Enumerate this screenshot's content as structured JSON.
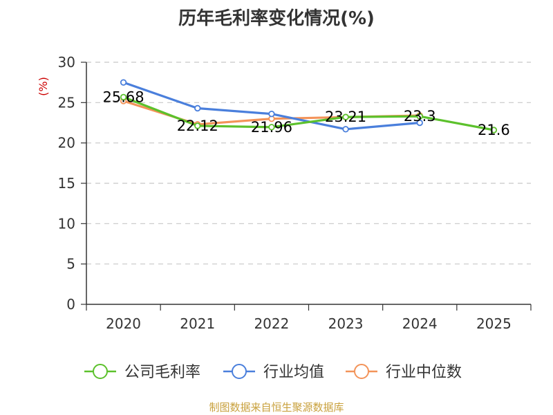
{
  "chart_data": {
    "type": "line",
    "title": "历年毛利率变化情况(%)",
    "ylabel": "(%)",
    "xlabel": "",
    "categories": [
      "2020",
      "2021",
      "2022",
      "2023",
      "2024",
      "2025"
    ],
    "ylim": [
      0,
      30
    ],
    "yticks": [
      0,
      5,
      10,
      15,
      20,
      25,
      30
    ],
    "grid": true,
    "legend_position": "bottom",
    "series": [
      {
        "name": "公司毛利率",
        "color": "#5cc12c",
        "values": [
          25.68,
          22.12,
          21.96,
          23.21,
          23.3,
          21.6
        ]
      },
      {
        "name": "行业均值",
        "color": "#4a7fdc",
        "values": [
          27.5,
          24.3,
          23.6,
          21.7,
          22.5,
          null
        ]
      },
      {
        "name": "行业中位数",
        "color": "#f39359",
        "values": [
          25.2,
          22.3,
          23.0,
          23.2,
          23.4,
          null
        ]
      }
    ],
    "data_labels": [
      {
        "series": 0,
        "index": 0,
        "text": "25.68"
      },
      {
        "series": 0,
        "index": 1,
        "text": "22.12"
      },
      {
        "series": 0,
        "index": 2,
        "text": "21.96"
      },
      {
        "series": 0,
        "index": 3,
        "text": "23.21"
      },
      {
        "series": 0,
        "index": 4,
        "text": "23.3"
      },
      {
        "series": 0,
        "index": 5,
        "text": "21.6"
      }
    ]
  },
  "footer": {
    "source": "制图数据来自恒生聚源数据库"
  }
}
